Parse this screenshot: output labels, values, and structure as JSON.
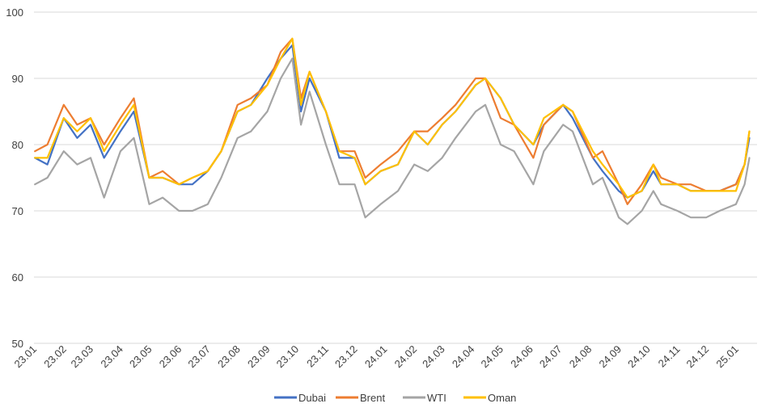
{
  "chart_data": {
    "type": "line",
    "title": "",
    "xlabel": "",
    "ylabel": "",
    "ylim": [
      50,
      100
    ],
    "yticks": [
      "50",
      "60",
      "70",
      "80",
      "90",
      "100"
    ],
    "grid": "horizontal",
    "legend_position": "bottom",
    "x_tick_labels": [
      "23.01",
      "23.02",
      "23.03",
      "23.04",
      "23.05",
      "23.06",
      "23.07",
      "23.08",
      "23.09",
      "23.10",
      "23.11",
      "23.12",
      "24.01",
      "24.02",
      "24.03",
      "24.04",
      "24.05",
      "24.06",
      "24.07",
      "24.08",
      "24.09",
      "24.10",
      "24.11",
      "24.12",
      "25.01"
    ],
    "x": [
      "2023-01-02",
      "2023-01-15",
      "2023-02-01",
      "2023-02-15",
      "2023-03-01",
      "2023-03-15",
      "2023-04-01",
      "2023-04-15",
      "2023-05-01",
      "2023-05-15",
      "2023-06-01",
      "2023-06-15",
      "2023-07-01",
      "2023-07-15",
      "2023-08-01",
      "2023-08-15",
      "2023-09-01",
      "2023-09-15",
      "2023-09-27",
      "2023-10-06",
      "2023-10-15",
      "2023-11-01",
      "2023-11-15",
      "2023-12-01",
      "2023-12-12",
      "2023-12-28",
      "2024-01-15",
      "2024-02-01",
      "2024-02-15",
      "2024-03-01",
      "2024-03-15",
      "2024-04-05",
      "2024-04-15",
      "2024-05-01",
      "2024-05-15",
      "2024-06-04",
      "2024-06-15",
      "2024-07-05",
      "2024-07-15",
      "2024-08-05",
      "2024-08-15",
      "2024-09-01",
      "2024-09-10",
      "2024-09-25",
      "2024-10-07",
      "2024-10-15",
      "2024-11-01",
      "2024-11-15",
      "2024-12-01",
      "2024-12-15",
      "2025-01-01",
      "2025-01-10",
      "2025-01-15"
    ],
    "series": [
      {
        "name": "Dubai",
        "color": "#4472c4",
        "values": [
          78,
          77,
          84,
          81,
          83,
          78,
          82,
          85,
          75,
          75,
          74,
          74,
          76,
          79,
          85,
          86,
          90,
          93,
          95,
          85,
          90,
          85,
          78,
          78,
          74,
          76,
          77,
          82,
          80,
          83,
          85,
          89,
          90,
          87,
          83,
          80,
          83,
          86,
          84,
          78,
          76,
          73,
          72,
          73,
          76,
          74,
          74,
          73,
          73,
          73,
          74,
          77,
          81
        ]
      },
      {
        "name": "Brent",
        "color": "#ed7d31",
        "values": [
          79,
          80,
          86,
          83,
          84,
          80,
          84,
          87,
          75,
          76,
          74,
          75,
          76,
          79,
          86,
          87,
          89,
          94,
          96,
          87,
          91,
          85,
          79,
          79,
          75,
          77,
          79,
          82,
          82,
          84,
          86,
          90,
          90,
          84,
          83,
          78,
          83,
          86,
          85,
          78,
          79,
          74,
          71,
          74,
          77,
          75,
          74,
          74,
          73,
          73,
          74,
          77,
          82
        ]
      },
      {
        "name": "WTI",
        "color": "#a5a5a5",
        "values": [
          74,
          75,
          79,
          77,
          78,
          72,
          79,
          81,
          71,
          72,
          70,
          70,
          71,
          75,
          81,
          82,
          85,
          90,
          93,
          83,
          88,
          80,
          74,
          74,
          69,
          71,
          73,
          77,
          76,
          78,
          81,
          85,
          86,
          80,
          79,
          74,
          79,
          83,
          82,
          74,
          75,
          69,
          68,
          70,
          73,
          71,
          70,
          69,
          69,
          70,
          71,
          74,
          78
        ]
      },
      {
        "name": "Oman",
        "color": "#ffc000",
        "values": [
          78,
          78,
          84,
          82,
          84,
          79,
          83,
          86,
          75,
          75,
          74,
          75,
          76,
          79,
          85,
          86,
          89,
          93,
          96,
          86,
          91,
          85,
          79,
          78,
          74,
          76,
          77,
          82,
          80,
          83,
          85,
          89,
          90,
          87,
          83,
          80,
          84,
          86,
          85,
          79,
          77,
          74,
          72,
          73,
          77,
          74,
          74,
          73,
          73,
          73,
          73,
          77,
          82
        ]
      }
    ]
  }
}
